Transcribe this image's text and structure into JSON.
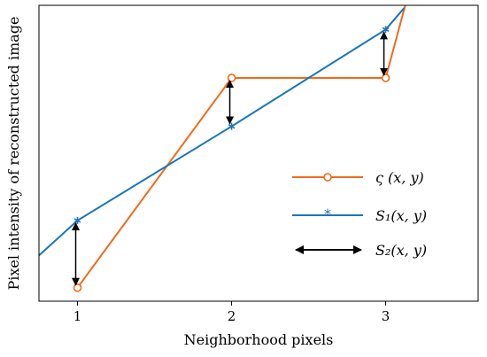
{
  "chart_data": {
    "type": "line",
    "xlabel": "Neighborhood pixels",
    "ylabel": "Pixel intensity of reconstructed image",
    "xlim": [
      0.75,
      3.6
    ],
    "ylim": [
      0,
      1.1
    ],
    "xticks": [
      1,
      2,
      3
    ],
    "yticks_visible": false,
    "grid": false,
    "legend_position": "right",
    "series": [
      {
        "name": "ς (x, y)",
        "color": "#f26a1b",
        "marker": "open-circle",
        "x": [
          1,
          2,
          3
        ],
        "y": [
          0.05,
          0.83,
          0.83
        ],
        "extends_to_top_at_x": 3.13
      },
      {
        "name": "S₁(x, y)",
        "color": "#1a75bc",
        "marker": "star",
        "x": [
          0.75,
          1,
          2,
          3,
          3.12
        ],
        "y": [
          0.17,
          0.3,
          0.65,
          1.01,
          1.09
        ]
      }
    ],
    "difference_arrows": {
      "name": "S₂(x, y)",
      "color": "#000000",
      "pairs": [
        {
          "x": 1,
          "y_from": 0.3,
          "y_to": 0.05
        },
        {
          "x": 2,
          "y_from": 0.83,
          "y_to": 0.65
        },
        {
          "x": 3,
          "y_from": 1.01,
          "y_to": 0.83
        }
      ]
    },
    "legend": [
      "ς (x, y)",
      "S₁(x, y)",
      "S₂(x, y)"
    ]
  }
}
